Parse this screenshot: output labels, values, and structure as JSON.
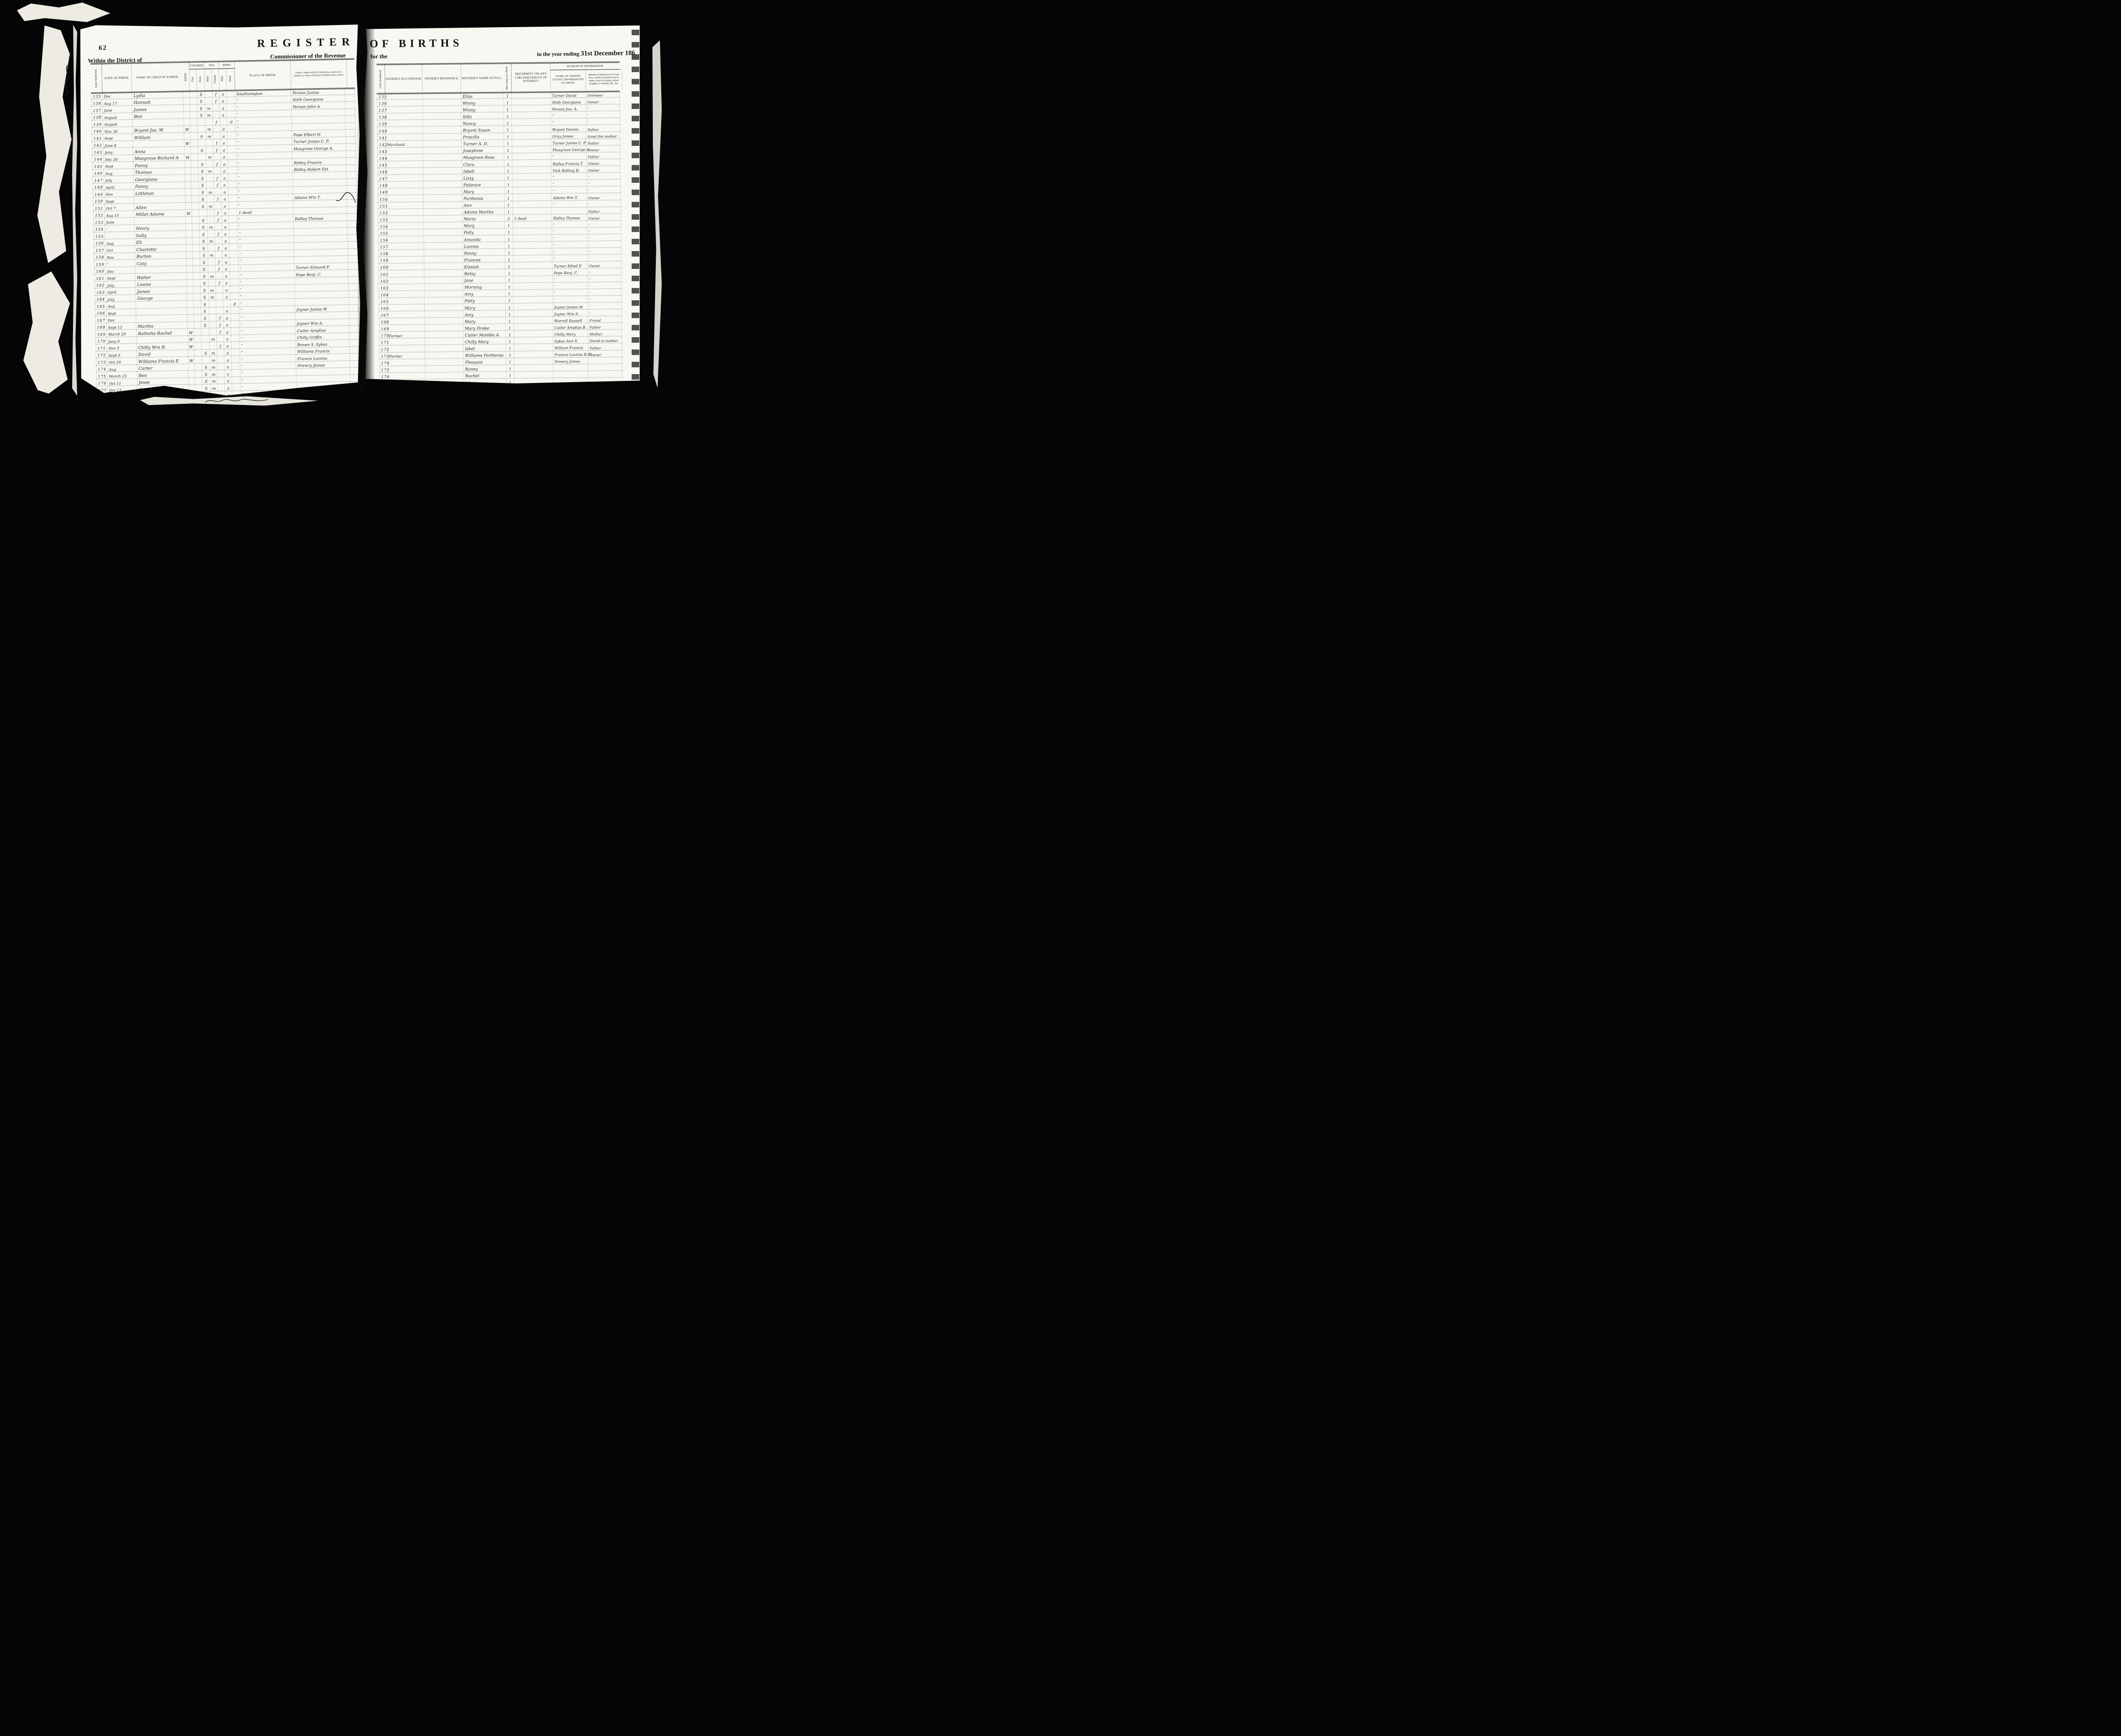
{
  "meta": {
    "colors": {
      "background": "#050505",
      "paper": "#f8f7f2",
      "ink": "#232323",
      "print": "#141414"
    }
  },
  "scan": {
    "left_page": {
      "page_number": "62",
      "title": "REGISTER",
      "district_line": "Within the District of",
      "commissioner_line": "Commissioner of the Revenue",
      "headers": {
        "line": "Lines Numbered.",
        "date": "DATE OF BIRTH.",
        "name": "NAME OF CHILD IF NAMED.",
        "white": "WHITE.",
        "colored": "COLORED.",
        "free": "Free.",
        "slave": "Slave.",
        "sex": "SEX.",
        "male": "Male.",
        "female": "Female.",
        "born": "BORN.",
        "alive": "Alive.",
        "dead": "Dead.",
        "place": "PLACE OF BIRTH.",
        "father": "Father's Name in full if Child be free and born in wedlock, or Name of Owner if Child be born a Slave."
      },
      "rows": [
        {
          "n": "135",
          "d": "Dec",
          "c": "Lydia",
          "race": "S",
          "sex": "f",
          "born": "a",
          "p": "Southampton",
          "f": "Person Junius",
          "note": ""
        },
        {
          "n": "136",
          "d": "Aug 17",
          "c": "Hannah",
          "race": "S",
          "sex": "f",
          "born": "a",
          "p": "″",
          "f": "Stith Georgiana",
          "note": ""
        },
        {
          "n": "137",
          "d": "June",
          "c": "James",
          "race": "S",
          "sex": "m",
          "born": "a",
          "p": "″",
          "f": "Person John A.",
          "note": ""
        },
        {
          "n": "138",
          "d": "August",
          "c": "Ben",
          "race": "S",
          "sex": "m",
          "born": "a",
          "p": "″",
          "f": "",
          "note": ""
        },
        {
          "n": "139",
          "d": "August",
          "c": "",
          "race": "",
          "sex": "f",
          "born": "d",
          "p": "″",
          "f": "",
          "note": ""
        },
        {
          "n": "140",
          "d": "Nov 30",
          "c": "Bryant Jas. W",
          "race": "W",
          "sex": "m",
          "born": "a",
          "p": "″",
          "f": "",
          "note": ""
        },
        {
          "n": "141",
          "d": "Sept",
          "c": "William",
          "race": "S",
          "sex": "m",
          "born": "a",
          "p": "″",
          "f": "Pope Elbert H.",
          "note": ""
        },
        {
          "n": "142",
          "d": "June 8",
          "c": "",
          "race": "W",
          "sex": "f",
          "born": "a",
          "p": "″",
          "f": "Turner James C. P.",
          "note": ""
        },
        {
          "n": "143",
          "d": "Jany",
          "c": "Anna",
          "race": "S",
          "sex": "f",
          "born": "a",
          "p": "″",
          "f": "Musgrave George A.",
          "note": ""
        },
        {
          "n": "144",
          "d": "Dec 26",
          "c": "Musgrave Richard A",
          "race": "W",
          "sex": "m",
          "born": "a",
          "p": "″",
          "f": "",
          "note": ""
        },
        {
          "n": "145",
          "d": "Sept",
          "c": "Fanny",
          "race": "S",
          "sex": "f",
          "born": "a",
          "p": "″",
          "f": "Ridley Francis",
          "note": ""
        },
        {
          "n": "146",
          "d": "Aug",
          "c": "Thomas",
          "race": "S",
          "sex": "m",
          "born": "a",
          "p": "″",
          "f": "Ridley Robert Est.",
          "note": ""
        },
        {
          "n": "147",
          "d": "July",
          "c": "Georgiana",
          "race": "S",
          "sex": "f",
          "born": "a",
          "p": "″",
          "f": "",
          "note": ""
        },
        {
          "n": "148",
          "d": "April",
          "c": "Fanny",
          "race": "S",
          "sex": "f",
          "born": "a",
          "p": "″",
          "f": "",
          "note": ""
        },
        {
          "n": "149",
          "d": "Nov",
          "c": "Littleton",
          "race": "S",
          "sex": "m",
          "born": "a",
          "p": "″",
          "f": "",
          "note": ""
        },
        {
          "n": "150",
          "d": "Sept",
          "c": "",
          "race": "S",
          "sex": "f",
          "born": "a",
          "p": "″",
          "f": "Adams Wm T.",
          "note": ""
        },
        {
          "n": "151",
          "d": "Oct 7",
          "c": "Allen",
          "race": "S",
          "sex": "m",
          "born": "a",
          "p": "″",
          "f": "",
          "note": ""
        },
        {
          "n": "152",
          "d": "Aug 15",
          "c": "Millet Adams",
          "race": "W",
          "sex": "f",
          "born": "a",
          "p": "″",
          "f": "",
          "note": "1 dead"
        },
        {
          "n": "153",
          "d": "June",
          "c": "",
          "race": "S",
          "sex": "f",
          "born": "a",
          "p": "″",
          "f": "Ridley Thomas",
          "note": ""
        },
        {
          "n": "154",
          "d": "″",
          "c": "Henry",
          "race": "S",
          "sex": "m",
          "born": "a",
          "p": "″",
          "f": "",
          "note": ""
        },
        {
          "n": "155",
          "d": "",
          "c": "Sally",
          "race": "S",
          "sex": "f",
          "born": "a",
          "p": "″",
          "f": "",
          "note": ""
        },
        {
          "n": "156",
          "d": "Aug",
          "c": "Eli",
          "race": "S",
          "sex": "m",
          "born": "a",
          "p": "″",
          "f": "",
          "note": ""
        },
        {
          "n": "157",
          "d": "Oct",
          "c": "Charlotte",
          "race": "S",
          "sex": "f",
          "born": "a",
          "p": "″",
          "f": "",
          "note": ""
        },
        {
          "n": "158",
          "d": "Nov",
          "c": "Burton",
          "race": "S",
          "sex": "m",
          "born": "a",
          "p": "″",
          "f": "",
          "note": ""
        },
        {
          "n": "159",
          "d": "″",
          "c": "Caty",
          "race": "S",
          "sex": "f",
          "born": "a",
          "p": "″",
          "f": "",
          "note": ""
        },
        {
          "n": "160",
          "d": "Dec",
          "c": "",
          "race": "S",
          "sex": "f",
          "born": "a",
          "p": "″",
          "f": "Turner Edward P.",
          "note": ""
        },
        {
          "n": "161",
          "d": "Sept",
          "c": "Walter",
          "race": "S",
          "sex": "m",
          "born": "a",
          "p": "″",
          "f": "Pope Benj. C.",
          "note": ""
        },
        {
          "n": "162",
          "d": "July",
          "c": "Louisa",
          "race": "S",
          "sex": "f",
          "born": "a",
          "p": "″",
          "f": "",
          "note": ""
        },
        {
          "n": "163",
          "d": "April",
          "c": "James",
          "race": "S",
          "sex": "m",
          "born": "a",
          "p": "″",
          "f": "",
          "note": ""
        },
        {
          "n": "164",
          "d": "July",
          "c": "George",
          "race": "S",
          "sex": "m",
          "born": "a",
          "p": "″",
          "f": "",
          "note": ""
        },
        {
          "n": "165",
          "d": "Aug",
          "c": "",
          "race": "S",
          "sex": "",
          "born": "d",
          "p": "″",
          "f": "",
          "note": ""
        },
        {
          "n": "166",
          "d": "Sept",
          "c": "",
          "race": "S",
          "sex": "",
          "born": "a",
          "p": "″",
          "f": "Joyner James W.",
          "note": ""
        },
        {
          "n": "167",
          "d": "Dec",
          "c": "",
          "race": "S",
          "sex": "f",
          "born": "a",
          "p": "″",
          "f": "",
          "note": ""
        },
        {
          "n": "168",
          "d": "Sept 13",
          "c": "Martha",
          "race": "S",
          "sex": "f",
          "born": "a",
          "p": "″",
          "f": "Joyner Wm A.",
          "note": ""
        },
        {
          "n": "169",
          "d": "March 29",
          "c": "Bathelia Rachel",
          "race": "W",
          "sex": "f",
          "born": "a",
          "p": "″",
          "f": "Cutler Amplias",
          "note": ""
        },
        {
          "n": "170",
          "d": "Jany 9",
          "c": "",
          "race": "W",
          "sex": "m",
          "born": "a",
          "p": "″",
          "f": "Chilly Griffin",
          "note": ""
        },
        {
          "n": "171",
          "d": "Nov 5",
          "c": "Chilly Wm B.",
          "race": "W",
          "sex": "f",
          "born": "a",
          "p": "″",
          "f": "Brown S. Sykes",
          "note": ""
        },
        {
          "n": "172",
          "d": "Sept 9",
          "c": "David",
          "race": "S",
          "sex": "m",
          "born": "a",
          "p": "″",
          "f": "Williams Francis",
          "note": ""
        },
        {
          "n": "173",
          "d": "Oct 29",
          "c": "Williams Francis E",
          "race": "W",
          "sex": "m",
          "born": "a",
          "p": "″",
          "f": "Francis Lavinia",
          "note": ""
        },
        {
          "n": "174",
          "d": "Aug",
          "c": "Carter",
          "race": "S",
          "sex": "m",
          "born": "a",
          "p": "″",
          "f": "Drewry James",
          "note": ""
        },
        {
          "n": "175",
          "d": "March 23",
          "c": "Ben",
          "race": "S",
          "sex": "m",
          "born": "a",
          "p": "″",
          "f": "",
          "note": ""
        },
        {
          "n": "176",
          "d": "Oct 11",
          "c": "Jesse",
          "race": "S",
          "sex": "m",
          "born": "a",
          "p": "″",
          "f": "",
          "note": ""
        },
        {
          "n": "177",
          "d": "Oct 13",
          "c": "Cotrell",
          "race": "S",
          "sex": "m",
          "born": "a",
          "p": "″",
          "f": "",
          "note": ""
        },
        {
          "n": "178",
          "d": "April",
          "c": "Robert",
          "race": "S",
          "sex": "m",
          "born": "a",
          "p": "″",
          "f": "",
          "note": ""
        }
      ]
    },
    "right_page": {
      "title": "OF BIRTHS",
      "for_the": "for the",
      "year_prefix": "in the year ending",
      "year_bold": "31st December 186",
      "headers": {
        "line": "Lines Numbered.",
        "occupation": "FATHER'S OCCUPATION.",
        "residence": "FATHER'S RESIDENCE.",
        "mother": "MOTHER'S NAME IN FULL.",
        "count": "How many at a Birth.",
        "deformity": "DEFORMITY OR ANY CIRCUMSTANCES OF INTEREST.",
        "sources": "SOURCES OF INFORMATION.",
        "informant": "NAME OF PERSON GIVING INFORMATION OF BIRTH.",
        "relation": "Relation of Informant to Person born, whether of kindred and its degree, head of a family, friend, neighbor, or midwife, &c., &c."
      },
      "rows": [
        {
          "n": "135",
          "occ": "",
          "m": "Eliza",
          "num": "1",
          "def": "",
          "inf": "Turner David",
          "rel": "Overseer"
        },
        {
          "n": "136",
          "occ": "",
          "m": "Winny",
          "num": "1",
          "def": "",
          "inf": "Stith Georgiana",
          "rel": "Owner"
        },
        {
          "n": "137",
          "occ": "",
          "m": "Winny",
          "num": "1",
          "def": "",
          "inf": "Person Jno. A.",
          "rel": "″"
        },
        {
          "n": "138",
          "occ": "",
          "m": "Silla",
          "num": "1",
          "def": "",
          "inf": "″",
          "rel": "″"
        },
        {
          "n": "139",
          "occ": "",
          "m": "Nancy",
          "num": "1",
          "def": "",
          "inf": "″",
          "rel": "″"
        },
        {
          "n": "140",
          "occ": "",
          "m": "Bryant Susan",
          "num": "1",
          "def": "",
          "inf": "Bryant Dennis",
          "rel": "Father"
        },
        {
          "n": "141",
          "occ": "",
          "m": "Priscilla",
          "num": "1",
          "def": "",
          "inf": "Gray James",
          "rel": "hired the mother"
        },
        {
          "n": "142",
          "occ": "Merchant",
          "m": "Turner A. D.",
          "num": "1",
          "def": "",
          "inf": "Turner James C. P.",
          "rel": "Father"
        },
        {
          "n": "143",
          "occ": "",
          "m": "Josephine",
          "num": "1",
          "def": "",
          "inf": "Musgrave George A.",
          "rel": "Owner"
        },
        {
          "n": "144",
          "occ": "",
          "m": "Musgrave Rosa",
          "num": "1",
          "def": "",
          "inf": "″",
          "rel": "Father"
        },
        {
          "n": "145",
          "occ": "",
          "m": "Clara",
          "num": "1",
          "def": "",
          "inf": "Ridley Francis T.",
          "rel": "Owner"
        },
        {
          "n": "146",
          "occ": "",
          "m": "Isbell",
          "num": "1",
          "def": "",
          "inf": "Vick Bolling B.",
          "rel": "Owner"
        },
        {
          "n": "147",
          "occ": "",
          "m": "Lizzy",
          "num": "1",
          "def": "",
          "inf": "″",
          "rel": "″"
        },
        {
          "n": "148",
          "occ": "",
          "m": "Patience",
          "num": "1",
          "def": "",
          "inf": "″",
          "rel": "″"
        },
        {
          "n": "149",
          "occ": "",
          "m": "Mary",
          "num": "1",
          "def": "",
          "inf": "″",
          "rel": "″"
        },
        {
          "n": "150",
          "occ": "",
          "m": "Parthenia",
          "num": "1",
          "def": "",
          "inf": "Adams Wm T.",
          "rel": "Owner"
        },
        {
          "n": "151",
          "occ": "",
          "m": "Ann",
          "num": "1",
          "def": "",
          "inf": "″",
          "rel": "″"
        },
        {
          "n": "152",
          "occ": "",
          "m": "Adams Martha",
          "num": "1",
          "def": "",
          "inf": "",
          "rel": "Father"
        },
        {
          "n": "153",
          "occ": "",
          "m": "Maria",
          "num": "2",
          "def": "1 dead",
          "inf": "Ridley Thomas",
          "rel": "Owner"
        },
        {
          "n": "154",
          "occ": "",
          "m": "Mary",
          "num": "1",
          "def": "",
          "inf": "″",
          "rel": "″"
        },
        {
          "n": "155",
          "occ": "",
          "m": "Polly",
          "num": "1",
          "def": "",
          "inf": "″",
          "rel": "″"
        },
        {
          "n": "156",
          "occ": "",
          "m": "Amanda",
          "num": "1",
          "def": "",
          "inf": "″",
          "rel": "″"
        },
        {
          "n": "157",
          "occ": "",
          "m": "Lavinia",
          "num": "1",
          "def": "",
          "inf": "″",
          "rel": "″"
        },
        {
          "n": "158",
          "occ": "",
          "m": "Penny",
          "num": "1",
          "def": "",
          "inf": "″",
          "rel": "″"
        },
        {
          "n": "159",
          "occ": "",
          "m": "Frances",
          "num": "1",
          "def": "",
          "inf": "″",
          "rel": "″"
        },
        {
          "n": "160",
          "occ": "",
          "m": "Kissiah",
          "num": "1",
          "def": "",
          "inf": "Turner Edwd P.",
          "rel": "Owner"
        },
        {
          "n": "161",
          "occ": "",
          "m": "Betsy",
          "num": "1",
          "def": "",
          "inf": "Pope Benj. C.",
          "rel": "″"
        },
        {
          "n": "162",
          "occ": "",
          "m": "Jane",
          "num": "1",
          "def": "",
          "inf": "″",
          "rel": "″"
        },
        {
          "n": "163",
          "occ": "",
          "m": "Morning",
          "num": "1",
          "def": "",
          "inf": "″",
          "rel": "″"
        },
        {
          "n": "164",
          "occ": "",
          "m": "Amy",
          "num": "1",
          "def": "",
          "inf": "″",
          "rel": "″"
        },
        {
          "n": "165",
          "occ": "",
          "m": "Patty",
          "num": "1",
          "def": "",
          "inf": "″",
          "rel": "″"
        },
        {
          "n": "166",
          "occ": "",
          "m": "Mary",
          "num": "1",
          "def": "",
          "inf": "Joyner James W.",
          "rel": "″"
        },
        {
          "n": "167",
          "occ": "",
          "m": "Amy",
          "num": "1",
          "def": "",
          "inf": "Joyner Wm A.",
          "rel": "″"
        },
        {
          "n": "168",
          "occ": "",
          "m": "Mary",
          "num": "1",
          "def": "",
          "inf": "Worrell Russell",
          "rel": "Friend"
        },
        {
          "n": "169",
          "occ": "",
          "m": "Mary Drake",
          "num": "1",
          "def": "",
          "inf": "Cutler Amplias B.",
          "rel": "Father"
        },
        {
          "n": "170",
          "occ": "Farmer",
          "m": "Cutler Matilda A.",
          "num": "1",
          "def": "",
          "inf": "Chilly Mary",
          "rel": "Mother"
        },
        {
          "n": "171",
          "occ": "",
          "m": "Chilly Mary",
          "num": "1",
          "def": "",
          "inf": "Sykes Ann S.",
          "rel": "friend to mother"
        },
        {
          "n": "172",
          "occ": "",
          "m": "Isbel",
          "num": "1",
          "def": "",
          "inf": "William Francis",
          "rel": "Father"
        },
        {
          "n": "173",
          "occ": "Farmer",
          "m": "Williams Parthenia",
          "num": "1",
          "def": "",
          "inf": "Francis Lavinia B.W.",
          "rel": "Owner"
        },
        {
          "n": "174",
          "occ": "",
          "m": "Pleasant",
          "num": "1",
          "def": "",
          "inf": "Drewry James",
          "rel": ""
        },
        {
          "n": "175",
          "occ": "",
          "m": "Raney",
          "num": "1",
          "def": "",
          "inf": "",
          "rel": ""
        },
        {
          "n": "176",
          "occ": "",
          "m": "Rachel",
          "num": "1",
          "def": "",
          "inf": "",
          "rel": ""
        },
        {
          "n": "177",
          "occ": "",
          "m": "Maria",
          "num": "1",
          "def": "",
          "inf": "",
          "rel": ""
        },
        {
          "n": "178",
          "occ": "",
          "m": "Morganna",
          "num": "1",
          "def": "",
          "inf": "Barham Jos. S.",
          "rel": "Overseer"
        }
      ]
    }
  }
}
